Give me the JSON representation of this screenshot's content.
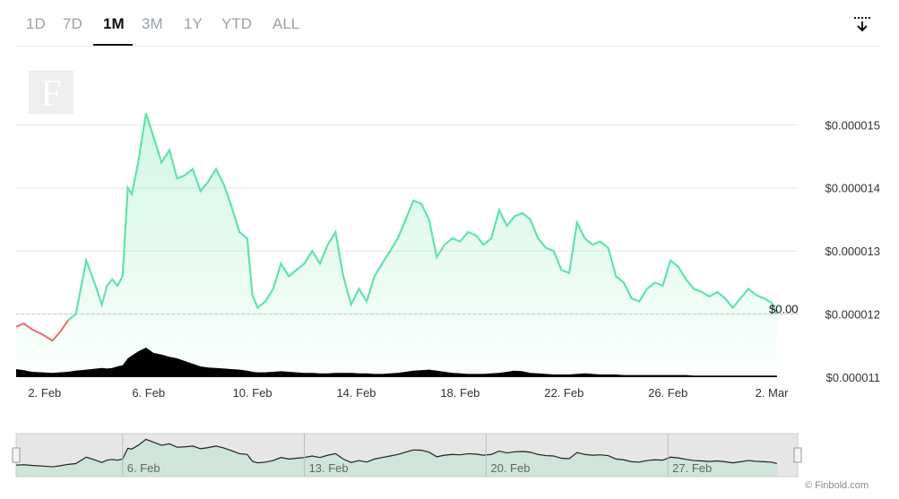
{
  "tabs": [
    {
      "label": "1D",
      "active": false
    },
    {
      "label": "7D",
      "active": false
    },
    {
      "label": "1M",
      "active": true
    },
    {
      "label": "3M",
      "active": false
    },
    {
      "label": "1Y",
      "active": false
    },
    {
      "label": "YTD",
      "active": false
    },
    {
      "label": "ALL",
      "active": false
    }
  ],
  "download_icon": "download-icon",
  "watermark_logo": "F",
  "credit": "© Finbold.com",
  "colors": {
    "up_line": "#63e3a9",
    "down_line": "#f06b6b",
    "volume": "#000000",
    "grid": "#e8e8e8",
    "navigator_bg": "#e6e6e6"
  },
  "chart_data": {
    "type": "area",
    "current_price_label": "$0.00",
    "y_tick_labels": [
      "$0.000015",
      "$0.000014",
      "$0.000013",
      "$0.000012",
      "$0.000011"
    ],
    "y_ticks": [
      1.5e-05,
      1.4e-05,
      1.3e-05,
      1.2e-05,
      1.1e-05
    ],
    "x_tick_labels": [
      "2. Feb",
      "6. Feb",
      "10. Feb",
      "14. Feb",
      "18. Feb",
      "22. Feb",
      "26. Feb",
      "2. Mar"
    ],
    "x_ticks": [
      2,
      6,
      10,
      14,
      18,
      22,
      26,
      30
    ],
    "xlim": [
      0.9,
      31.0
    ],
    "ylim": [
      1.1e-05,
      1.57e-05
    ],
    "series": [
      {
        "values_x": [
          0.9,
          1.2,
          1.5,
          1.9,
          2.3,
          2.6,
          2.9,
          3.2,
          3.6,
          4.0,
          4.2,
          4.4,
          4.6,
          4.8,
          5.0,
          5.2,
          5.35,
          5.6,
          5.9,
          6.2,
          6.5,
          6.8,
          7.1,
          7.4,
          7.7,
          8.0,
          8.3,
          8.6,
          8.9,
          9.2,
          9.5,
          9.8,
          10.0,
          10.2,
          10.5,
          10.8,
          11.1,
          11.4,
          11.7,
          12.0,
          12.3,
          12.6,
          12.9,
          13.2,
          13.5,
          13.8,
          14.1,
          14.4,
          14.7,
          15.0,
          15.3,
          15.6,
          15.9,
          16.2,
          16.5,
          16.8,
          17.1,
          17.4,
          17.7,
          18.0,
          18.3,
          18.6,
          18.9,
          19.2,
          19.5,
          19.8,
          20.1,
          20.4,
          20.7,
          21.0,
          21.3,
          21.6,
          21.9,
          22.2,
          22.5,
          22.8,
          23.1,
          23.4,
          23.7,
          24.0,
          24.3,
          24.6,
          24.9,
          25.2,
          25.5,
          25.8,
          26.1,
          26.4,
          26.7,
          27.0,
          27.3,
          27.6,
          27.9,
          28.2,
          28.5,
          28.8,
          29.1,
          29.4,
          29.7,
          30.0,
          30.2
        ],
        "values_y": [
          1.18e-05,
          1.185e-05,
          1.176e-05,
          1.168e-05,
          1.158e-05,
          1.172e-05,
          1.19e-05,
          1.2e-05,
          1.285e-05,
          1.24e-05,
          1.215e-05,
          1.245e-05,
          1.255e-05,
          1.245e-05,
          1.26e-05,
          1.4e-05,
          1.39e-05,
          1.44e-05,
          1.518e-05,
          1.48e-05,
          1.44e-05,
          1.46e-05,
          1.415e-05,
          1.42e-05,
          1.43e-05,
          1.395e-05,
          1.41e-05,
          1.43e-05,
          1.405e-05,
          1.37e-05,
          1.33e-05,
          1.32e-05,
          1.23e-05,
          1.21e-05,
          1.22e-05,
          1.24e-05,
          1.28e-05,
          1.26e-05,
          1.27e-05,
          1.28e-05,
          1.3e-05,
          1.28e-05,
          1.31e-05,
          1.33e-05,
          1.26e-05,
          1.215e-05,
          1.24e-05,
          1.22e-05,
          1.26e-05,
          1.28e-05,
          1.3e-05,
          1.32e-05,
          1.35e-05,
          1.38e-05,
          1.375e-05,
          1.35e-05,
          1.29e-05,
          1.31e-05,
          1.32e-05,
          1.315e-05,
          1.33e-05,
          1.325e-05,
          1.31e-05,
          1.32e-05,
          1.365e-05,
          1.34e-05,
          1.355e-05,
          1.36e-05,
          1.35e-05,
          1.32e-05,
          1.305e-05,
          1.3e-05,
          1.27e-05,
          1.265e-05,
          1.345e-05,
          1.32e-05,
          1.31e-05,
          1.315e-05,
          1.305e-05,
          1.26e-05,
          1.25e-05,
          1.225e-05,
          1.22e-05,
          1.24e-05,
          1.25e-05,
          1.245e-05,
          1.285e-05,
          1.275e-05,
          1.255e-05,
          1.24e-05,
          1.235e-05,
          1.228e-05,
          1.235e-05,
          1.225e-05,
          1.21e-05,
          1.225e-05,
          1.24e-05,
          1.23e-05,
          1.225e-05,
          1.218e-05,
          1.2e-05
        ]
      },
      {
        "values_x": [
          0.9,
          1.2,
          1.5,
          1.9,
          2.3,
          2.6,
          2.9,
          3.2,
          3.6,
          4.0,
          4.2,
          4.4,
          4.6,
          4.8,
          5.0,
          5.2,
          5.35,
          5.6,
          5.9,
          6.2,
          6.5,
          6.8,
          7.1,
          7.4,
          7.7,
          8.0,
          8.3,
          8.6,
          8.9,
          9.2,
          9.5,
          9.8,
          10.0,
          10.2,
          10.5,
          10.8,
          11.1,
          11.4,
          11.7,
          12.0,
          12.3,
          12.6,
          12.9,
          13.2,
          13.5,
          13.8,
          14.1,
          14.4,
          14.7,
          15.0,
          15.3,
          15.6,
          15.9,
          16.2,
          16.5,
          16.8,
          17.1,
          17.4,
          17.7,
          18.0,
          18.3,
          18.6,
          18.9,
          19.2,
          19.5,
          19.8,
          20.1,
          20.4,
          20.7,
          21.0,
          21.3,
          21.6,
          21.9,
          22.2,
          22.5,
          22.8,
          23.1,
          23.4,
          23.7,
          24.0,
          24.3,
          24.6,
          24.9,
          25.2,
          25.5,
          25.8,
          26.1,
          26.4,
          26.7,
          27.0,
          27.3,
          27.6,
          27.9,
          28.2,
          28.5,
          28.8,
          29.1,
          29.4,
          29.7,
          30.0,
          30.2
        ],
        "values_volume": [
          0.15,
          0.13,
          0.1,
          0.09,
          0.08,
          0.09,
          0.1,
          0.12,
          0.14,
          0.16,
          0.17,
          0.16,
          0.17,
          0.2,
          0.22,
          0.35,
          0.4,
          0.48,
          0.55,
          0.45,
          0.42,
          0.38,
          0.35,
          0.3,
          0.25,
          0.2,
          0.18,
          0.17,
          0.16,
          0.15,
          0.14,
          0.12,
          0.1,
          0.09,
          0.09,
          0.1,
          0.11,
          0.1,
          0.09,
          0.08,
          0.08,
          0.07,
          0.07,
          0.08,
          0.08,
          0.08,
          0.07,
          0.07,
          0.06,
          0.06,
          0.07,
          0.08,
          0.1,
          0.12,
          0.13,
          0.14,
          0.12,
          0.1,
          0.08,
          0.07,
          0.06,
          0.06,
          0.06,
          0.07,
          0.08,
          0.1,
          0.12,
          0.11,
          0.08,
          0.07,
          0.06,
          0.05,
          0.05,
          0.05,
          0.06,
          0.07,
          0.06,
          0.05,
          0.05,
          0.05,
          0.04,
          0.04,
          0.04,
          0.04,
          0.04,
          0.04,
          0.04,
          0.04,
          0.04,
          0.03,
          0.03,
          0.03,
          0.03,
          0.03,
          0.03,
          0.03,
          0.03,
          0.03,
          0.03,
          0.03,
          0.03
        ]
      }
    ],
    "navigator_x_tick_labels": [
      "6. Feb",
      "13. Feb",
      "20. Feb",
      "27. Feb"
    ],
    "navigator_x_ticks": [
      5,
      12,
      19,
      26
    ]
  }
}
